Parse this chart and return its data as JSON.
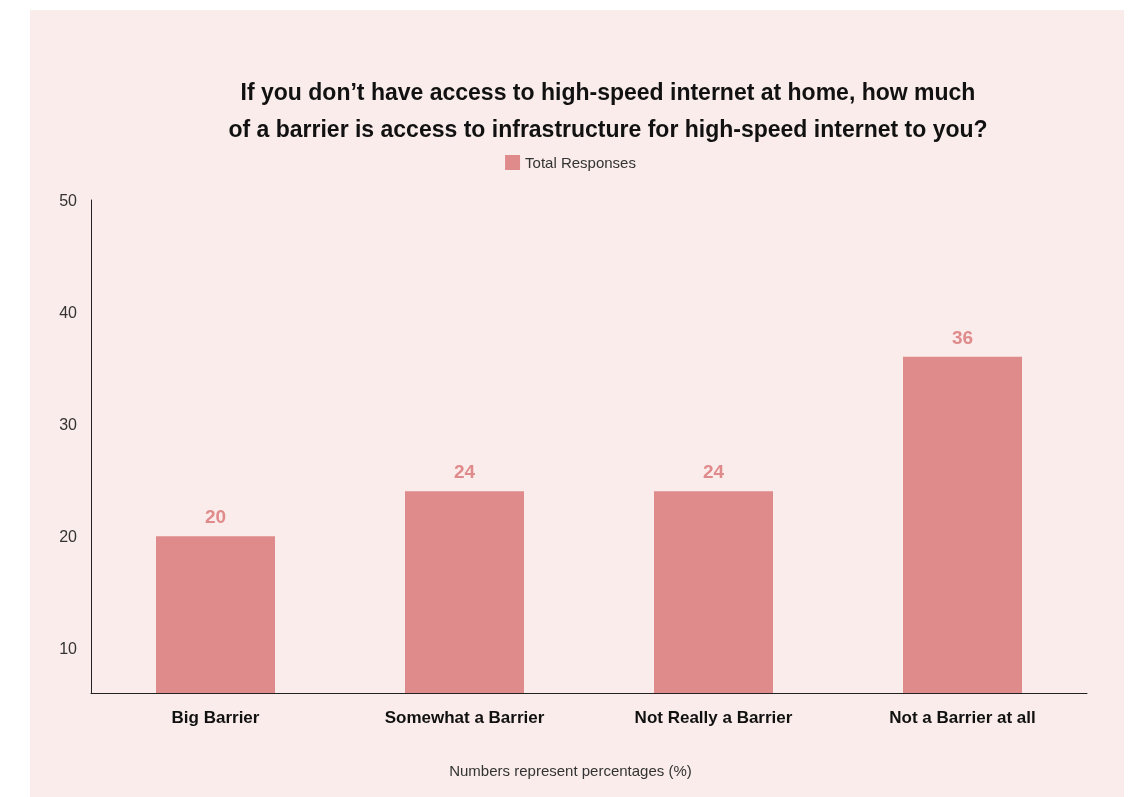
{
  "chart_data": {
    "type": "bar",
    "title": "If you don’t have access to high-speed internet at home, how much\nof a barrier is access to infrastructure for high-speed internet to you?",
    "categories": [
      "Big Barrier",
      "Somewhat a Barrier",
      "Not Really a Barrier",
      "Not a Barrier at all"
    ],
    "series": [
      {
        "name": "Total Responses",
        "color": "#e08b8b",
        "values": [
          20,
          24,
          24,
          36
        ]
      }
    ],
    "ylim": [
      6,
      50
    ],
    "yticks": [
      10,
      20,
      30,
      40,
      50
    ],
    "grid": false,
    "legend": "top",
    "data_labels": true,
    "annotations": [
      "Numbers represent percentages (%)"
    ]
  }
}
